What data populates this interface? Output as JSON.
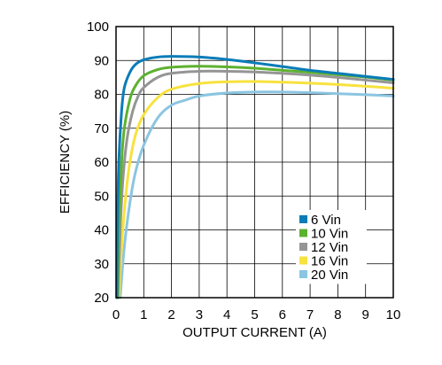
{
  "chart_data": {
    "type": "line",
    "xlabel": "OUTPUT CURRENT (A)",
    "ylabel": "EFFICIENCY (%)",
    "xlim": [
      0,
      10
    ],
    "ylim": [
      20,
      100
    ],
    "x_ticks": [
      0,
      1,
      2,
      3,
      4,
      5,
      6,
      7,
      8,
      9,
      10
    ],
    "y_ticks": [
      20,
      30,
      40,
      50,
      60,
      70,
      80,
      90,
      100
    ],
    "grid": true,
    "legend_position": "bottom-right",
    "series": [
      {
        "name": "6 Vin",
        "color": "#0a7cb8",
        "points": [
          [
            0.03,
            20
          ],
          [
            0.05,
            40
          ],
          [
            0.1,
            60
          ],
          [
            0.2,
            75
          ],
          [
            0.3,
            82
          ],
          [
            0.5,
            86.5
          ],
          [
            0.7,
            88.8
          ],
          [
            1.0,
            90.2
          ],
          [
            1.5,
            91
          ],
          [
            2.0,
            91.2
          ],
          [
            3.0,
            91
          ],
          [
            4.0,
            90.3
          ],
          [
            5.0,
            89.3
          ],
          [
            6.0,
            88.2
          ],
          [
            7.0,
            87.1
          ],
          [
            8.0,
            86.2
          ],
          [
            9.0,
            85.3
          ],
          [
            10.0,
            84.4
          ]
        ]
      },
      {
        "name": "10 Vin",
        "color": "#5db130",
        "points": [
          [
            0.05,
            20
          ],
          [
            0.1,
            40
          ],
          [
            0.2,
            60
          ],
          [
            0.3,
            70
          ],
          [
            0.5,
            78.5
          ],
          [
            0.7,
            82.5
          ],
          [
            1.0,
            85.5
          ],
          [
            1.5,
            87.3
          ],
          [
            2.0,
            88
          ],
          [
            3.0,
            88.3
          ],
          [
            4.0,
            88.1
          ],
          [
            5.0,
            87.7
          ],
          [
            6.0,
            87.1
          ],
          [
            7.0,
            86.5
          ],
          [
            8.0,
            85.8
          ],
          [
            9.0,
            85.1
          ],
          [
            10.0,
            84.2
          ]
        ]
      },
      {
        "name": "12 Vin",
        "color": "#959595",
        "points": [
          [
            0.07,
            20
          ],
          [
            0.15,
            40
          ],
          [
            0.25,
            55
          ],
          [
            0.4,
            67
          ],
          [
            0.6,
            75
          ],
          [
            0.8,
            79.5
          ],
          [
            1.0,
            82
          ],
          [
            1.5,
            85
          ],
          [
            2.0,
            86.2
          ],
          [
            3.0,
            86.8
          ],
          [
            4.0,
            86.8
          ],
          [
            5.0,
            86.6
          ],
          [
            6.0,
            86.2
          ],
          [
            7.0,
            85.7
          ],
          [
            8.0,
            85
          ],
          [
            9.0,
            84.2
          ],
          [
            10.0,
            83.4
          ]
        ]
      },
      {
        "name": "16 Vin",
        "color": "#f7e23e",
        "points": [
          [
            0.1,
            20
          ],
          [
            0.2,
            35
          ],
          [
            0.35,
            50
          ],
          [
            0.5,
            60
          ],
          [
            0.7,
            68
          ],
          [
            1.0,
            74
          ],
          [
            1.5,
            79
          ],
          [
            2.0,
            81.5
          ],
          [
            3.0,
            83.2
          ],
          [
            4.0,
            83.7
          ],
          [
            5.0,
            83.8
          ],
          [
            6.0,
            83.6
          ],
          [
            7.0,
            83.3
          ],
          [
            8.0,
            82.9
          ],
          [
            9.0,
            82.4
          ],
          [
            10.0,
            81.8
          ]
        ]
      },
      {
        "name": "20 Vin",
        "color": "#8bc5e1",
        "points": [
          [
            0.15,
            20
          ],
          [
            0.3,
            35
          ],
          [
            0.5,
            48
          ],
          [
            0.7,
            57
          ],
          [
            1.0,
            65
          ],
          [
            1.5,
            73
          ],
          [
            2.0,
            76.8
          ],
          [
            2.5,
            78.3
          ],
          [
            3.0,
            79.5
          ],
          [
            4.0,
            80.4
          ],
          [
            5.0,
            80.7
          ],
          [
            6.0,
            80.7
          ],
          [
            7.0,
            80.5
          ],
          [
            8.0,
            80.2
          ],
          [
            9.0,
            79.9
          ],
          [
            10.0,
            79.5
          ]
        ]
      }
    ]
  }
}
